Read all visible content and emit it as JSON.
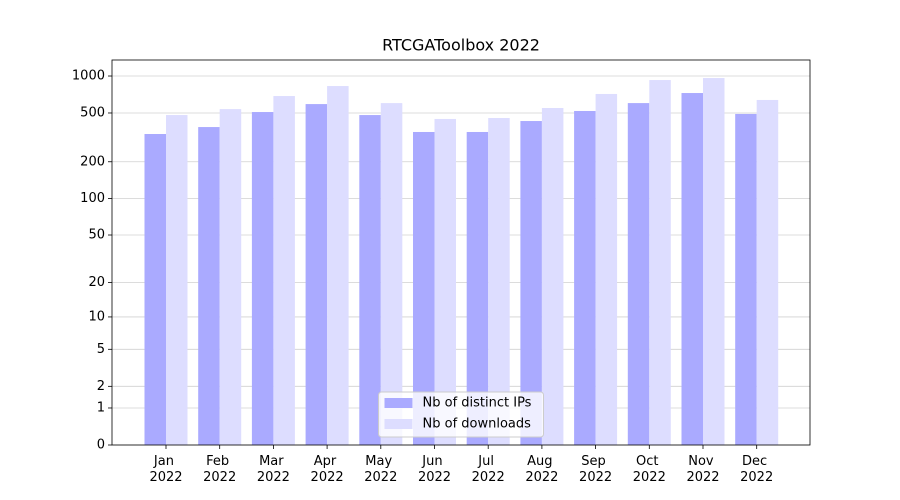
{
  "chart_data": {
    "type": "bar",
    "title": "RTCGAToolbox 2022",
    "categories": [
      "Jan 2022",
      "Feb 2022",
      "Mar 2022",
      "Apr 2022",
      "May 2022",
      "Jun 2022",
      "Jul 2022",
      "Aug 2022",
      "Sep 2022",
      "Oct 2022",
      "Nov 2022",
      "Dec 2022"
    ],
    "series": [
      {
        "name": "Nb of distinct IPs",
        "color": "#aaaaff",
        "values": [
          337,
          384,
          509,
          591,
          481,
          350,
          350,
          430,
          519,
          602,
          727,
          491
        ]
      },
      {
        "name": "Nb of downloads",
        "color": "#ddddff",
        "values": [
          481,
          538,
          687,
          829,
          602,
          447,
          455,
          549,
          714,
          927,
          963,
          638
        ]
      }
    ],
    "yscale": "symlog",
    "ylim": [
      0,
      1350
    ],
    "yticks": [
      0,
      1,
      2,
      5,
      10,
      20,
      50,
      100,
      200,
      500,
      1000
    ],
    "grid": true,
    "legend": "lower center"
  }
}
